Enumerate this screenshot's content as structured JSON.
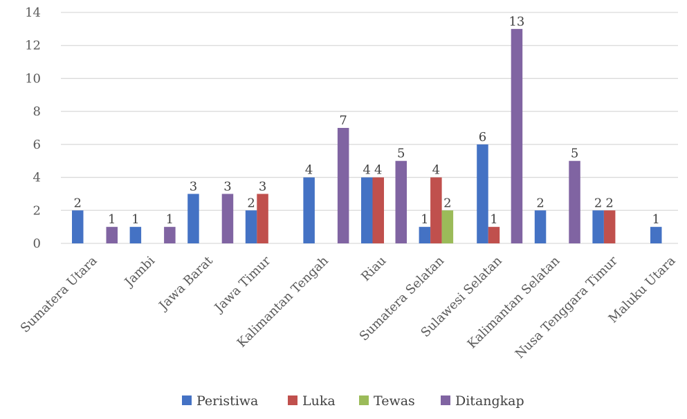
{
  "chart_data": {
    "type": "bar",
    "title": "",
    "xlabel": "",
    "ylabel": "",
    "ylim": [
      0,
      14
    ],
    "yticks": [
      0,
      2,
      4,
      6,
      8,
      10,
      12,
      14
    ],
    "grid": true,
    "legend_position": "bottom",
    "categories": [
      "Sumatera Utara",
      "Jambi",
      "Jawa Barat",
      "Jawa Timur",
      "Kalimantan Tengah",
      "Riau",
      "Sumatera Selatan",
      "Sulawesi Selatan",
      "Kalimantan Selatan",
      "Nusa Tenggara Timur",
      "Maluku Utara"
    ],
    "series": [
      {
        "name": "Peristiwa",
        "color": "#4472c4",
        "values": [
          2,
          1,
          3,
          2,
          4,
          4,
          1,
          6,
          2,
          2,
          1
        ]
      },
      {
        "name": "Luka",
        "color": "#c0504d",
        "values": [
          null,
          null,
          null,
          3,
          null,
          4,
          4,
          1,
          null,
          2,
          null
        ]
      },
      {
        "name": "Tewas",
        "color": "#9bbb59",
        "values": [
          null,
          null,
          null,
          null,
          null,
          null,
          2,
          null,
          null,
          null,
          null
        ]
      },
      {
        "name": "Ditangkap",
        "color": "#8064a2",
        "values": [
          1,
          1,
          3,
          null,
          7,
          5,
          null,
          13,
          5,
          null,
          null
        ]
      }
    ]
  }
}
